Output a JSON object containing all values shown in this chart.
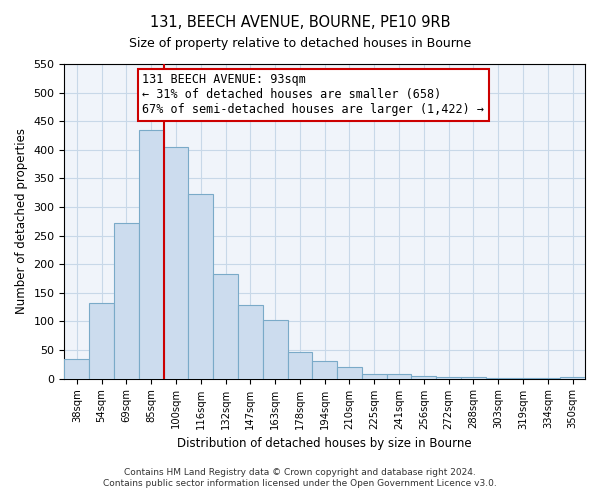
{
  "title": "131, BEECH AVENUE, BOURNE, PE10 9RB",
  "subtitle": "Size of property relative to detached houses in Bourne",
  "xlabel": "Distribution of detached houses by size in Bourne",
  "ylabel": "Number of detached properties",
  "bar_labels": [
    "38sqm",
    "54sqm",
    "69sqm",
    "85sqm",
    "100sqm",
    "116sqm",
    "132sqm",
    "147sqm",
    "163sqm",
    "178sqm",
    "194sqm",
    "210sqm",
    "225sqm",
    "241sqm",
    "256sqm",
    "272sqm",
    "288sqm",
    "303sqm",
    "319sqm",
    "334sqm",
    "350sqm"
  ],
  "bar_values": [
    35,
    133,
    272,
    435,
    405,
    323,
    183,
    128,
    103,
    46,
    30,
    20,
    8,
    8,
    5,
    2,
    2,
    1,
    1,
    1,
    2
  ],
  "bar_color": "#ccdcee",
  "bar_edge_color": "#7aaac8",
  "redline_index": 3.5,
  "annotation_title": "131 BEECH AVENUE: 93sqm",
  "annotation_line1": "← 31% of detached houses are smaller (658)",
  "annotation_line2": "67% of semi-detached houses are larger (1,422) →",
  "ylim": [
    0,
    550
  ],
  "yticks": [
    0,
    50,
    100,
    150,
    200,
    250,
    300,
    350,
    400,
    450,
    500,
    550
  ],
  "grid_color": "#c8d8e8",
  "bg_color": "#f0f4fa",
  "footer1": "Contains HM Land Registry data © Crown copyright and database right 2024.",
  "footer2": "Contains public sector information licensed under the Open Government Licence v3.0."
}
